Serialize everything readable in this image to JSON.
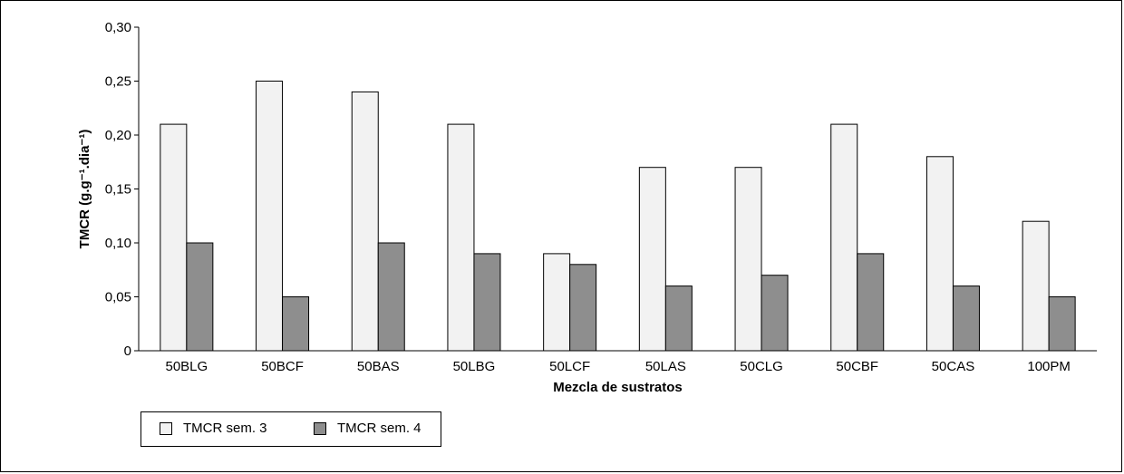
{
  "chart_data": {
    "type": "bar",
    "categories": [
      "50BLG",
      "50BCF",
      "50BAS",
      "50LBG",
      "50LCF",
      "50LAS",
      "50CLG",
      "50CBF",
      "50CAS",
      "100PM"
    ],
    "series": [
      {
        "name": "TMCR sem. 3",
        "values": [
          0.21,
          0.25,
          0.24,
          0.21,
          0.09,
          0.17,
          0.17,
          0.21,
          0.18,
          0.12
        ],
        "color": "#f2f2f2"
      },
      {
        "name": "TMCR sem. 4",
        "values": [
          0.1,
          0.05,
          0.1,
          0.09,
          0.08,
          0.06,
          0.07,
          0.09,
          0.06,
          0.05
        ],
        "color": "#8e8e8e"
      }
    ],
    "xlabel": "Mezcla de sustratos",
    "ylabel": "TMCR (g.g⁻¹.dia⁻¹)",
    "ylim": [
      0,
      0.3
    ],
    "yticks": [
      "0",
      "0,05",
      "0,10",
      "0,15",
      "0,20",
      "0,25",
      "0,30"
    ],
    "grid": false,
    "legend_position": "bottom-left"
  }
}
